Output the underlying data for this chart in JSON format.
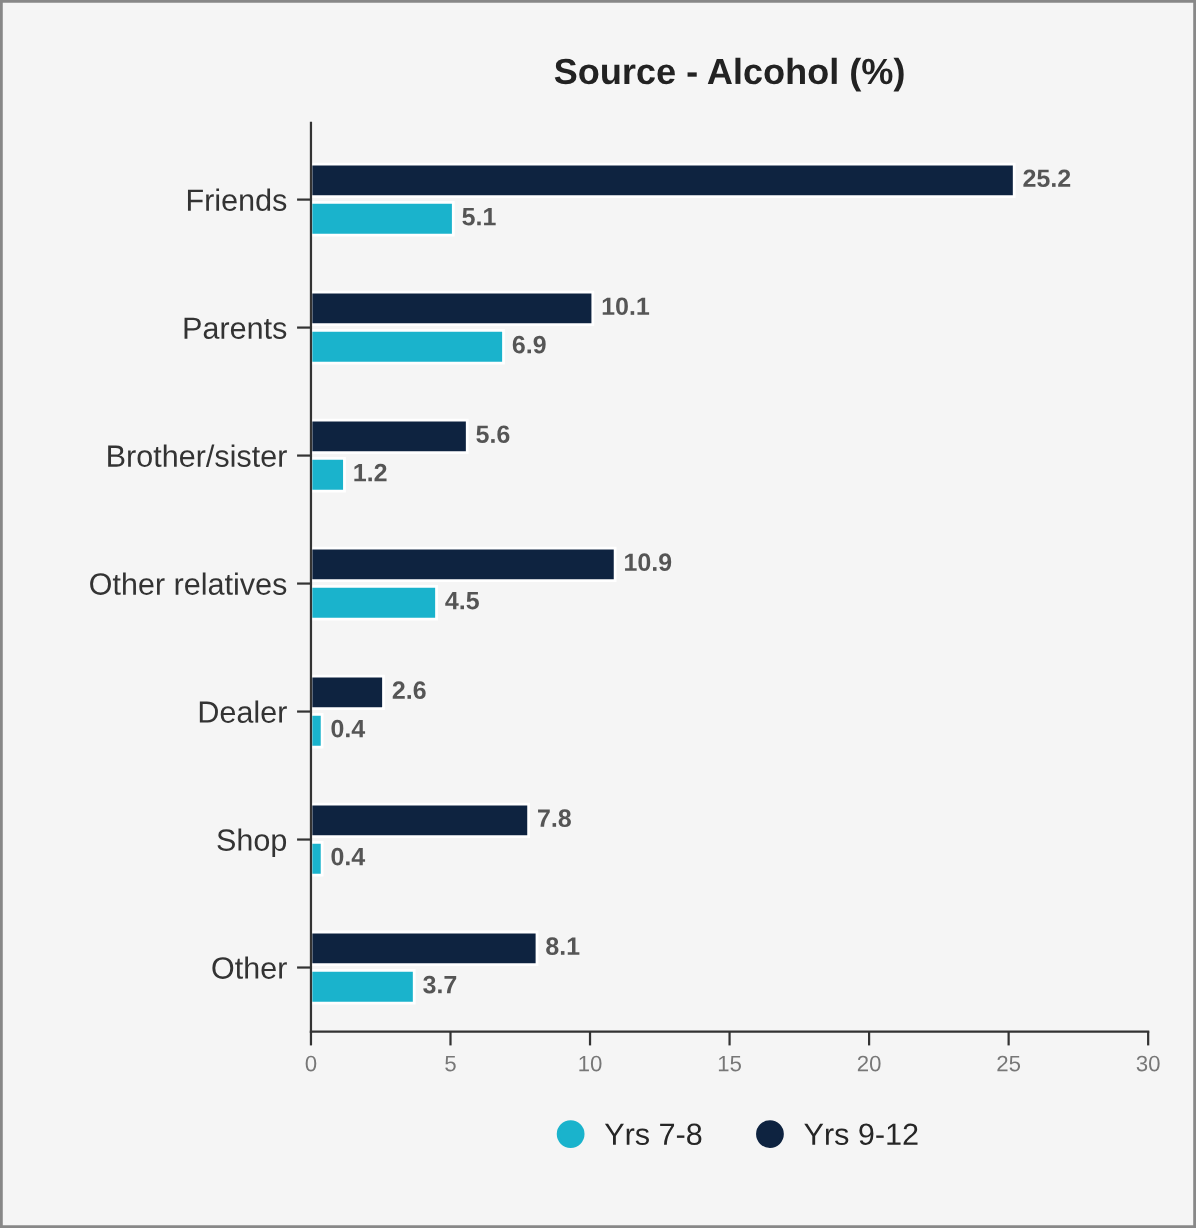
{
  "chart_data": {
    "type": "bar",
    "orientation": "horizontal",
    "title": "Source - Alcohol (%)",
    "categories": [
      "Friends",
      "Parents",
      "Brother/sister",
      "Other relatives",
      "Dealer",
      "Shop",
      "Other"
    ],
    "series": [
      {
        "name": "Yrs 7-8",
        "color": "#1ab3cc",
        "values": [
          5.1,
          6.9,
          1.2,
          4.5,
          0.4,
          0.4,
          3.7
        ]
      },
      {
        "name": "Yrs 9-12",
        "color": "#0e2340",
        "values": [
          25.2,
          10.1,
          5.6,
          10.9,
          2.6,
          7.8,
          8.1
        ]
      }
    ],
    "xlim": [
      0,
      30
    ],
    "xticks": [
      0,
      5,
      10,
      15,
      20,
      25,
      30
    ],
    "data_labels": true,
    "legend": "bottom",
    "grid": false
  }
}
